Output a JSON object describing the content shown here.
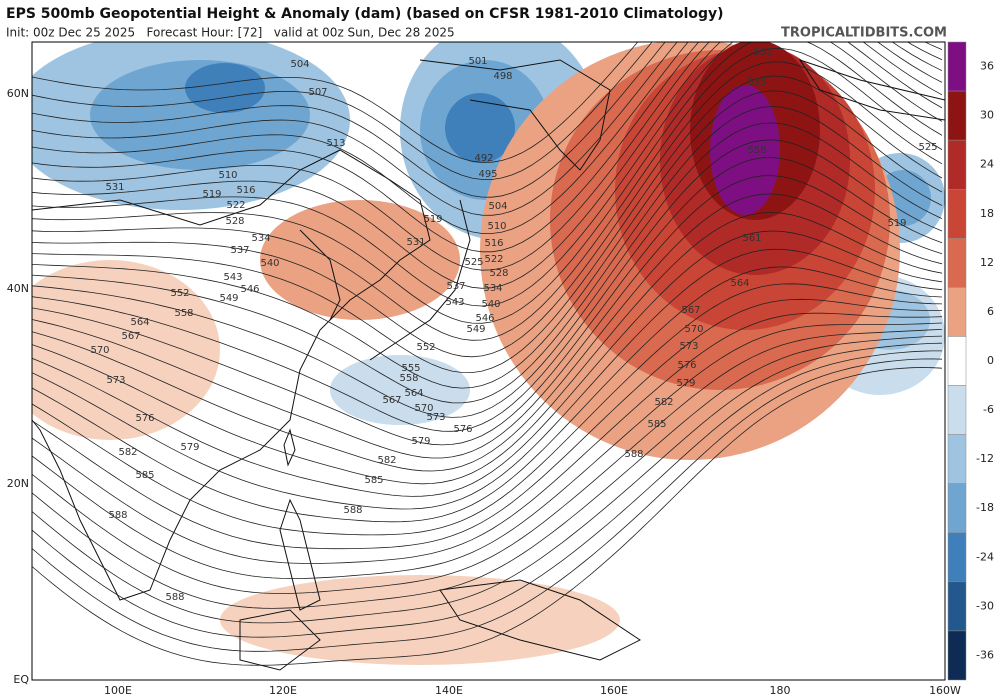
{
  "header": {
    "title": "EPS 500mb Geopotential Height & Anomaly (dam) (based on CFSR 1981-2010 Climatology)",
    "subtitle": "Init: 00z Dec 25 2025   Forecast Hour: [72]   valid at 00z Sun, Dec 28 2025",
    "source": "TROPICALTIDBITS.COM"
  },
  "map": {
    "lat_labels": [
      "60N",
      "40N",
      "20N",
      "EQ"
    ],
    "lon_labels": [
      "100E",
      "120E",
      "140E",
      "160E",
      "180",
      "160W"
    ],
    "contour_labels": [
      "504",
      "507",
      "501",
      "498",
      "513",
      "510",
      "516",
      "519",
      "522",
      "528",
      "531",
      "492",
      "495",
      "504",
      "510",
      "516",
      "519",
      "522",
      "525",
      "528",
      "531",
      "534",
      "537",
      "540",
      "543",
      "546",
      "549",
      "552",
      "558",
      "564",
      "567",
      "570",
      "573",
      "576",
      "579",
      "582",
      "585",
      "588",
      "588",
      "537",
      "534",
      "543",
      "540",
      "546",
      "549",
      "552",
      "555",
      "558",
      "564",
      "567",
      "570",
      "573",
      "576",
      "579",
      "582",
      "585",
      "588",
      "564",
      "567",
      "570",
      "573",
      "576",
      "579",
      "582",
      "585",
      "588",
      "561",
      "558",
      "555",
      "552",
      "525",
      "519"
    ]
  },
  "colorbar": {
    "ticks": [
      36,
      30,
      24,
      18,
      12,
      6,
      0,
      -6,
      -12,
      -18,
      -24,
      -30,
      -36
    ],
    "colors": [
      "#7e0f82",
      "#8e1414",
      "#b02a28",
      "#c94536",
      "#da6a4f",
      "#eba283",
      "#ffffff",
      "#c9dded",
      "#9ec4e1",
      "#6fa6d1",
      "#3f80ba",
      "#22588d",
      "#0e2b55"
    ]
  }
}
